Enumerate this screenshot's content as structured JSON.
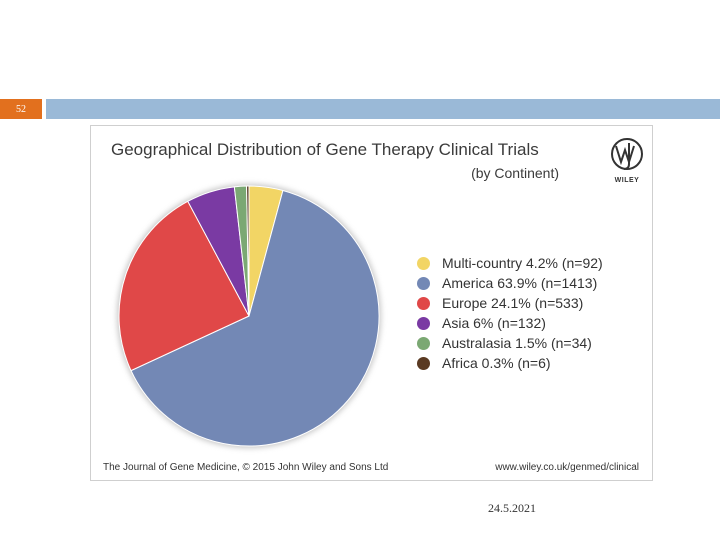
{
  "slide": {
    "number": "52",
    "date": "24.5.2021"
  },
  "colors": {
    "accent_bar": "#9ab9d7",
    "slide_number_bg": "#e2701e"
  },
  "figure": {
    "logo_text": "WILEY",
    "logo_icon": "wiley-wj-monogram-icon",
    "footer_left": "The Journal of Gene Medicine, © 2015 John Wiley and Sons Ltd",
    "footer_right": "www.wiley.co.uk/genmed/clinical"
  },
  "chart_data": {
    "type": "pie",
    "title": "Geographical Distribution of Gene Therapy Clinical Trials",
    "subtitle": "(by Continent)",
    "legend_position": "right",
    "slices": [
      {
        "label": "Multi-country",
        "percent": 4.2,
        "n": 92,
        "color": "#f2d565",
        "legend_text": "Multi-country 4.2% (n=92)"
      },
      {
        "label": "America",
        "percent": 63.9,
        "n": 1413,
        "color": "#7388b5",
        "legend_text": "America 63.9% (n=1413)"
      },
      {
        "label": "Europe",
        "percent": 24.1,
        "n": 533,
        "color": "#e04848",
        "legend_text": "Europe 24.1% (n=533)"
      },
      {
        "label": "Asia",
        "percent": 6,
        "n": 132,
        "color": "#7a3aa3",
        "legend_text": "Asia 6% (n=132)"
      },
      {
        "label": "Australasia",
        "percent": 1.5,
        "n": 34,
        "color": "#7ba873",
        "legend_text": "Australasia 1.5% (n=34)"
      },
      {
        "label": "Africa",
        "percent": 0.3,
        "n": 6,
        "color": "#5a3a22",
        "legend_text": "Africa 0.3% (n=6)"
      }
    ]
  }
}
